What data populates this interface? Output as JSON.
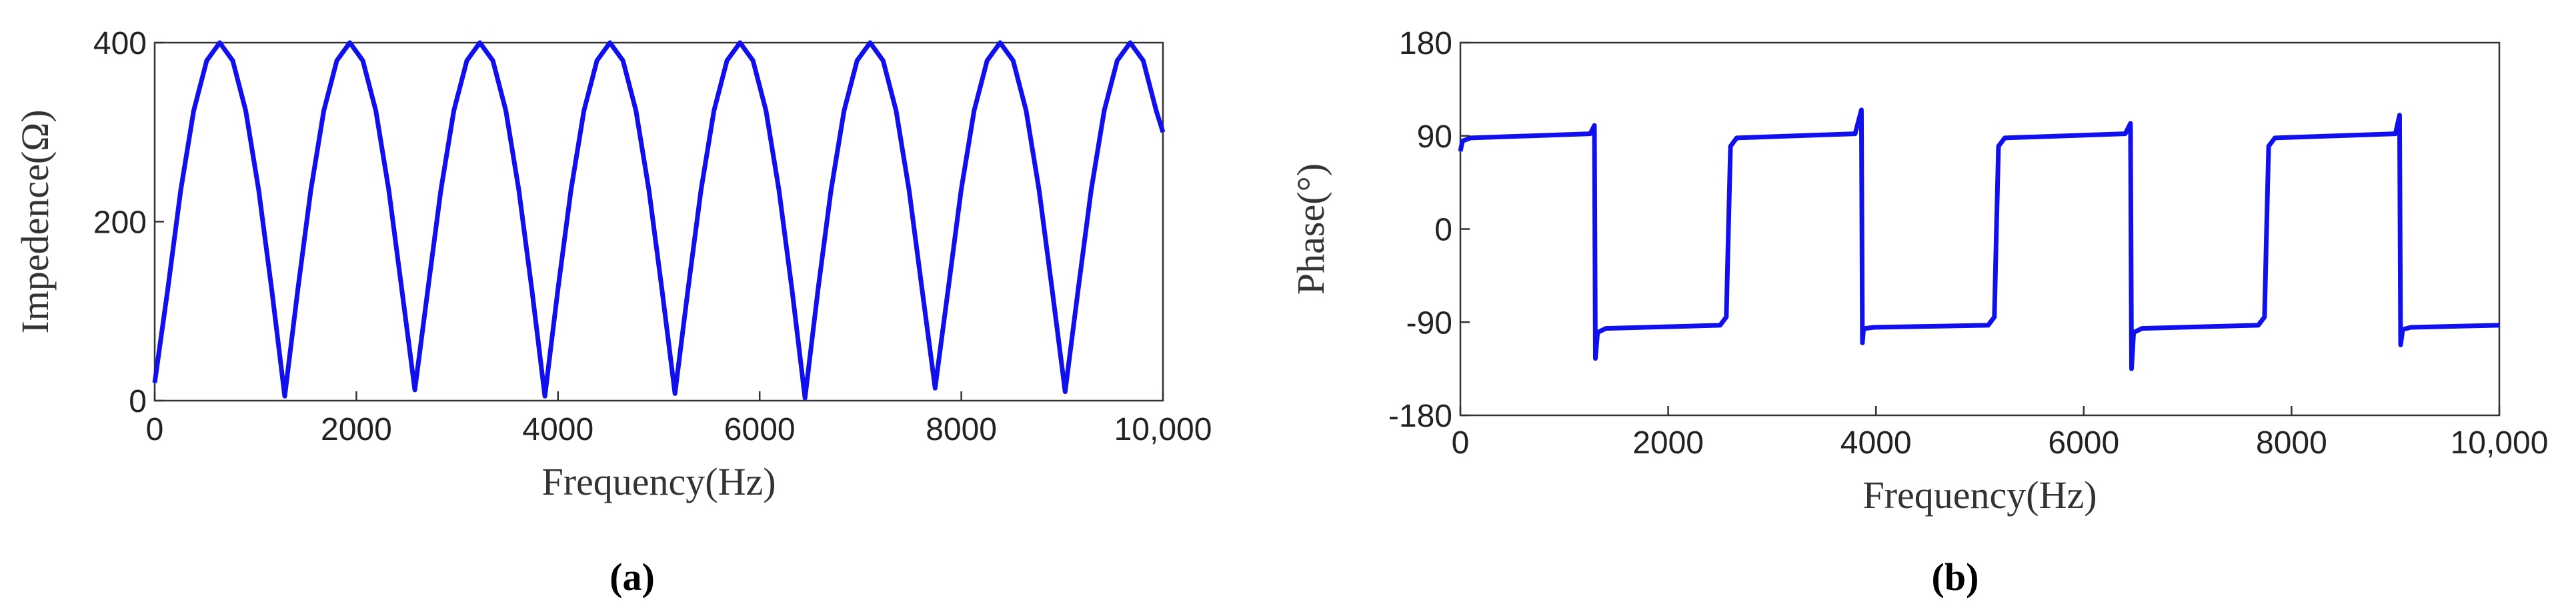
{
  "chart_data": [
    {
      "type": "line",
      "y_label": "Impedence(Ω)",
      "x_label": "Frequency(Hz)",
      "caption": "(a)",
      "color": "#1010ee",
      "xlim": [
        0,
        10000
      ],
      "ylim": [
        0,
        400
      ],
      "xticks": [
        0,
        2000,
        4000,
        6000,
        8000,
        {
          "value": 10000,
          "label": "10,000"
        }
      ],
      "yticks": [
        0,
        200,
        400
      ],
      "x": [
        0,
        129,
        258,
        387,
        516,
        645,
        774,
        903,
        1032,
        1161,
        1290,
        1419,
        1548,
        1677,
        1806,
        1935,
        2064,
        2193,
        2322,
        2451,
        2580,
        2709,
        2838,
        2967,
        3096,
        3225,
        3354,
        3483,
        3612,
        3741,
        3870,
        3999,
        4128,
        4257,
        4386,
        4515,
        4644,
        4773,
        4902,
        5031,
        5160,
        5289,
        5418,
        5547,
        5676,
        5805,
        5934,
        6063,
        6192,
        6321,
        6450,
        6579,
        6708,
        6837,
        6966,
        7095,
        7224,
        7353,
        7482,
        7611,
        7740,
        7869,
        7998,
        8127,
        8256,
        8385,
        8514,
        8643,
        8772,
        8901,
        9030,
        9159,
        9288,
        9417,
        9546,
        9675,
        9804,
        9933,
        10000
      ],
      "values": [
        20,
        124,
        235,
        324,
        380,
        400,
        380,
        324,
        235,
        124,
        5,
        124,
        235,
        324,
        380,
        400,
        380,
        324,
        235,
        124,
        12,
        124,
        235,
        324,
        380,
        400,
        380,
        324,
        235,
        124,
        5,
        124,
        235,
        324,
        380,
        400,
        380,
        324,
        235,
        124,
        8,
        124,
        235,
        324,
        380,
        400,
        380,
        324,
        235,
        124,
        3,
        124,
        235,
        324,
        380,
        400,
        380,
        324,
        235,
        124,
        14,
        124,
        235,
        324,
        380,
        400,
        380,
        324,
        235,
        124,
        10,
        124,
        235,
        324,
        380,
        400,
        380,
        324,
        300
      ]
    },
    {
      "type": "line",
      "y_label": "Phase(°)",
      "x_label": "Frequency(Hz)",
      "caption": "(b)",
      "color": "#1010ee",
      "xlim": [
        0,
        10000
      ],
      "ylim": [
        -180,
        180
      ],
      "xticks": [
        0,
        2000,
        4000,
        6000,
        8000,
        {
          "value": 10000,
          "label": "10,000"
        }
      ],
      "yticks": [
        -180,
        -90,
        0,
        90,
        180
      ],
      "x": [
        0,
        20,
        100,
        1250,
        1290,
        1300,
        1320,
        1400,
        2500,
        2560,
        2580,
        2600,
        2660,
        3800,
        3860,
        3870,
        3880,
        3900,
        3980,
        5080,
        5140,
        5160,
        5180,
        5240,
        6400,
        6450,
        6460,
        6480,
        6560,
        7680,
        7740,
        7760,
        7780,
        7840,
        9000,
        9040,
        9050,
        9070,
        9150,
        10000
      ],
      "values": [
        75,
        85,
        88,
        92,
        100,
        -125,
        -100,
        -96,
        -93,
        -85,
        0,
        80,
        88,
        92,
        115,
        -110,
        -97,
        -96,
        -95,
        -93,
        -85,
        0,
        80,
        88,
        92,
        102,
        -135,
        -100,
        -96,
        -93,
        -85,
        0,
        80,
        88,
        92,
        110,
        -112,
        -97,
        -95,
        -93
      ]
    }
  ]
}
